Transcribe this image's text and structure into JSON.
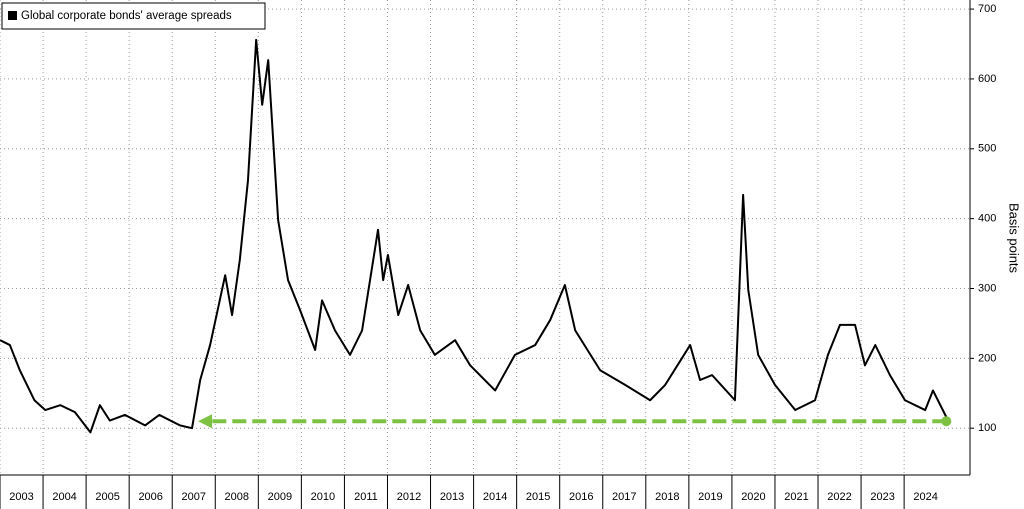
{
  "chart_data": {
    "type": "line",
    "legend_label": "Global corporate bonds' average spreads",
    "y_axis_label": "Basis points",
    "series": [
      {
        "name": "Global corporate bonds' average spreads",
        "color": "#000000",
        "x": [
          2003.0,
          2003.23,
          2003.46,
          2003.8,
          2004.05,
          2004.4,
          2004.74,
          2005.1,
          2005.32,
          2005.55,
          2005.9,
          2006.37,
          2006.7,
          2007.18,
          2007.46,
          2007.65,
          2007.88,
          2008.23,
          2008.39,
          2008.57,
          2008.76,
          2008.95,
          2009.09,
          2009.23,
          2009.46,
          2009.69,
          2009.97,
          2010.32,
          2010.48,
          2010.78,
          2011.13,
          2011.41,
          2011.78,
          2011.9,
          2012.01,
          2012.25,
          2012.48,
          2012.76,
          2013.1,
          2013.57,
          2013.92,
          2014.5,
          2014.96,
          2015.43,
          2015.78,
          2016.12,
          2016.36,
          2016.94,
          2017.52,
          2018.1,
          2018.45,
          2019.03,
          2019.26,
          2019.54,
          2020.07,
          2020.26,
          2020.38,
          2020.61,
          2021.0,
          2021.47,
          2021.93,
          2022.23,
          2022.51,
          2022.86,
          2023.09,
          2023.33,
          2023.67,
          2024.02,
          2024.49,
          2024.67,
          2025.02
        ],
        "values": [
          226,
          219,
          183,
          140,
          126,
          133,
          123,
          94,
          133,
          111,
          119,
          104,
          119,
          104,
          100,
          169,
          219,
          319,
          262,
          341,
          455,
          656,
          563,
          627,
          398,
          312,
          269,
          212,
          283,
          240,
          205,
          240,
          384,
          312,
          348,
          262,
          305,
          240,
          205,
          226,
          190,
          154,
          205,
          219,
          255,
          305,
          240,
          183,
          162,
          140,
          162,
          219,
          169,
          176,
          140,
          434,
          298,
          205,
          162,
          126,
          140,
          205,
          248,
          248,
          190,
          219,
          176,
          140,
          126,
          154,
          111
        ]
      }
    ],
    "xlim": [
      2003,
      2025.53
    ],
    "xticks": [
      {
        "value": 2003,
        "label": "2003"
      },
      {
        "value": 2004,
        "label": "2004"
      },
      {
        "value": 2005,
        "label": "2005"
      },
      {
        "value": 2006,
        "label": "2006"
      },
      {
        "value": 2007,
        "label": "2007"
      },
      {
        "value": 2008,
        "label": "2008"
      },
      {
        "value": 2009,
        "label": "2009"
      },
      {
        "value": 2010,
        "label": "2010"
      },
      {
        "value": 2011,
        "label": "2011"
      },
      {
        "value": 2012,
        "label": "2012"
      },
      {
        "value": 2013,
        "label": "2013"
      },
      {
        "value": 2014,
        "label": "2014"
      },
      {
        "value": 2015,
        "label": "2015"
      },
      {
        "value": 2016,
        "label": "2016"
      },
      {
        "value": 2017,
        "label": "2017"
      },
      {
        "value": 2018,
        "label": "2018"
      },
      {
        "value": 2019,
        "label": "2019"
      },
      {
        "value": 2020,
        "label": "2020"
      },
      {
        "value": 2021,
        "label": "2021"
      },
      {
        "value": 2022,
        "label": "2022"
      },
      {
        "value": 2023,
        "label": "2023"
      },
      {
        "value": 2024,
        "label": "2024"
      }
    ],
    "ylim": [
      33,
      713
    ],
    "yticks": [
      100,
      200,
      300,
      400,
      500,
      600,
      700
    ],
    "grid": true,
    "annotation": {
      "type": "arrow",
      "x": [
        2024.98,
        2007.6
      ],
      "y": 110,
      "color": "#7dc242"
    }
  }
}
